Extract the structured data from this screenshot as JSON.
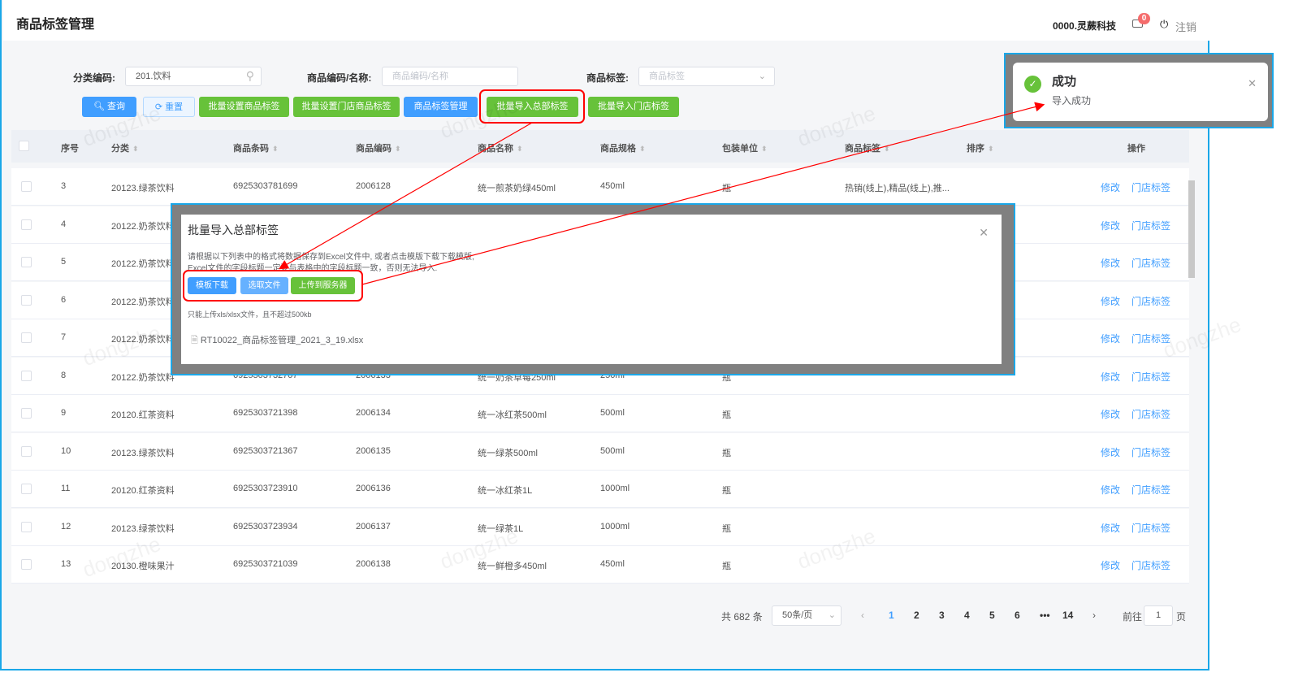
{
  "header": {
    "title": "商品标签管理",
    "user": "0000.灵蕨科技",
    "message_count": "0",
    "logout": "注销"
  },
  "filters": {
    "category_label": "分类编码:",
    "category_value": "201.饮料",
    "code_label": "商品编码/名称:",
    "code_placeholder": "商品编码/名称",
    "tag_label": "商品标签:",
    "tag_placeholder": "商品标签"
  },
  "toolbar": [
    "查询",
    "重置",
    "批量设置商品标签",
    "批量设置门店商品标签",
    "商品标签管理",
    "批量导入总部标签",
    "批量导入门店标签"
  ],
  "columns": [
    "序号",
    "分类",
    "商品条码",
    "商品编码",
    "商品名称",
    "商品规格",
    "包装单位",
    "商品标签",
    "排序",
    "操作"
  ],
  "rows": [
    [
      "3",
      "20123.绿茶饮料",
      "6925303781699",
      "2006128",
      "统一煎茶奶绿450ml",
      "450ml",
      "瓶",
      "热销(线上),精品(线上),推..."
    ],
    [
      "4",
      "20122.奶茶饮料",
      "",
      "",
      "",
      "",
      "",
      ""
    ],
    [
      "5",
      "20122.奶茶饮料",
      "",
      "",
      "",
      "",
      "",
      ""
    ],
    [
      "6",
      "20122.奶茶饮料",
      "",
      "",
      "",
      "",
      "",
      ""
    ],
    [
      "7",
      "20122.奶茶饮料",
      "",
      "",
      "",
      "",
      "",
      ""
    ],
    [
      "8",
      "20122.奶茶饮料",
      "6925303732707",
      "2006133",
      "统一奶茶草莓250ml",
      "250ml",
      "瓶",
      ""
    ],
    [
      "9",
      "20120.红茶资料",
      "6925303721398",
      "2006134",
      "统一冰红茶500ml",
      "500ml",
      "瓶",
      ""
    ],
    [
      "10",
      "20123.绿茶饮料",
      "6925303721367",
      "2006135",
      "统一绿茶500ml",
      "500ml",
      "瓶",
      ""
    ],
    [
      "11",
      "20120.红茶资料",
      "6925303723910",
      "2006136",
      "统一冰红茶1L",
      "1000ml",
      "瓶",
      ""
    ],
    [
      "12",
      "20123.绿茶饮料",
      "6925303723934",
      "2006137",
      "统一绿茶1L",
      "1000ml",
      "瓶",
      ""
    ],
    [
      "13",
      "20130.橙味果汁",
      "6925303721039",
      "2006138",
      "统一鲜橙多450ml",
      "450ml",
      "瓶",
      ""
    ]
  ],
  "row_actions": {
    "edit": "修改",
    "store_tag": "门店标签"
  },
  "pagination": {
    "total": "共 682 条",
    "page_size": "50条/页",
    "pages": [
      "1",
      "2",
      "3",
      "4",
      "5",
      "6",
      "•••",
      "14"
    ],
    "current": "1",
    "goto_label": "前往",
    "goto_value": "1",
    "page_suffix": "页"
  },
  "dialog": {
    "title": "批量导入总部标签",
    "line1": "请根据以下列表中的格式将数据保存到Excel文件中, 或者点击模版下载下载模版,",
    "line2": "Excel文件的字段标题一定要与表格中的字段标题一致，否则无法导入.",
    "btn_template": "模板下载",
    "btn_select": "选取文件",
    "btn_upload": "上传到服务器",
    "hint": "只能上传xls/xlsx文件，且不超过500kb",
    "file": "RT10022_商品标签管理_2021_3_19.xlsx"
  },
  "toast": {
    "title": "成功",
    "message": "导入成功"
  },
  "watermark": "dongzhe",
  "colors": {
    "green": "#67c23a",
    "blue": "#409eff",
    "annotation": "#ff0000",
    "frame": "#1aa7e8"
  }
}
